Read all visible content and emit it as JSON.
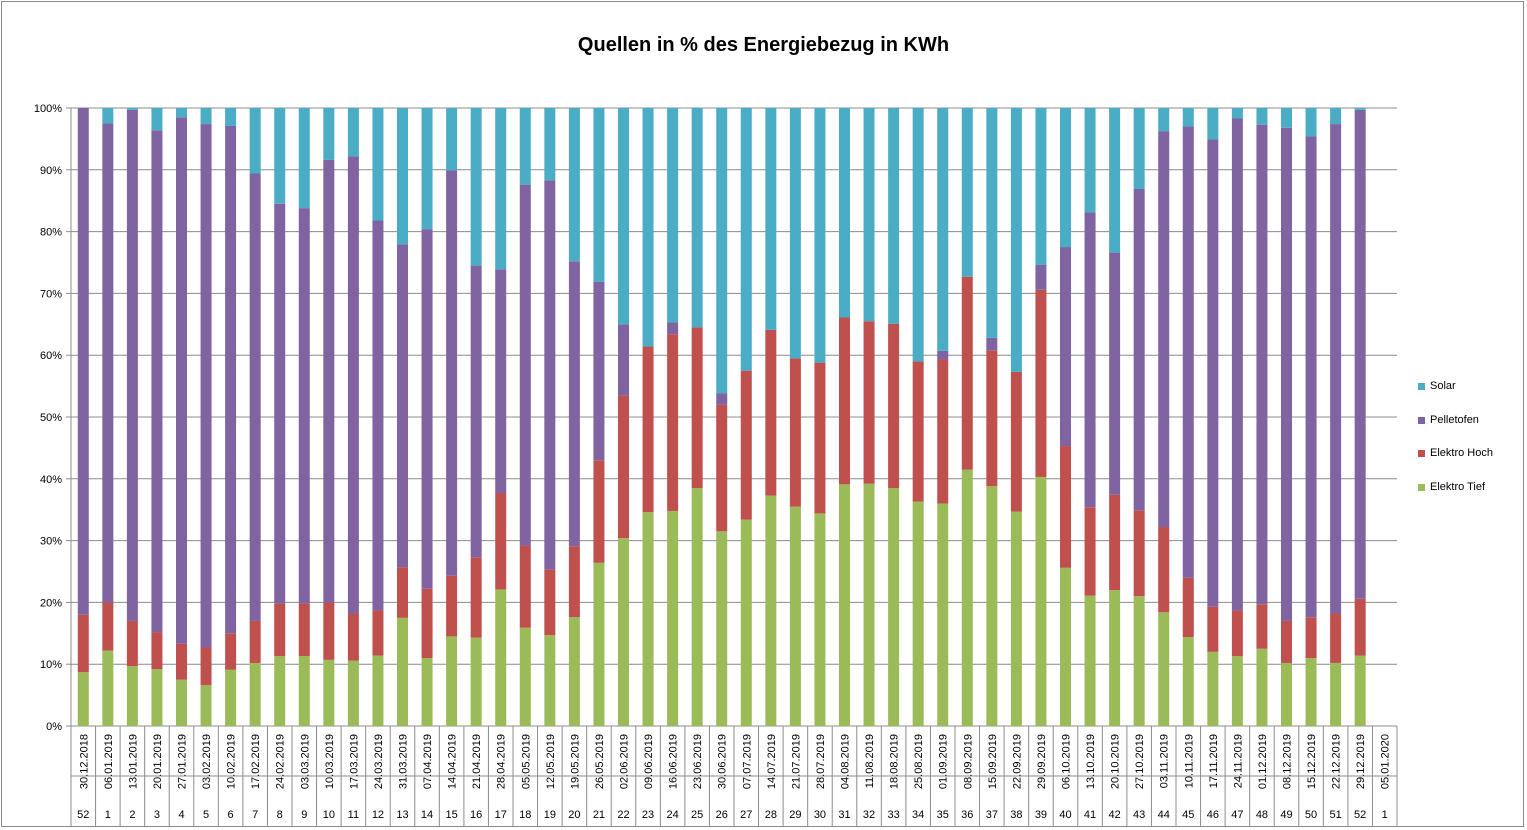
{
  "chart_data": {
    "type": "bar",
    "stacked": "percent",
    "title": "Quellen in % des Energiebezug in KWh",
    "y_ticks": [
      "0%",
      "10%",
      "20%",
      "30%",
      "40%",
      "50%",
      "60%",
      "70%",
      "80%",
      "90%",
      "100%"
    ],
    "ylim": [
      0,
      100
    ],
    "grid": true,
    "legend_position": "right",
    "categories": [
      "30.12.2018",
      "06.01.2019",
      "13.01.2019",
      "20.01.2019",
      "27.01.2019",
      "03.02.2019",
      "10.02.2019",
      "17.02.2019",
      "24.02.2019",
      "03.03.2019",
      "10.03.2019",
      "17.03.2019",
      "24.03.2019",
      "31.03.2019",
      "07.04.2019",
      "14.04.2019",
      "21.04.2019",
      "28.04.2019",
      "05.05.2019",
      "12.05.2019",
      "19.05.2019",
      "26.05.2019",
      "02.06.2019",
      "09.06.2019",
      "16.06.2019",
      "23.06.2019",
      "30.06.2019",
      "07.07.2019",
      "14.07.2019",
      "21.07.2019",
      "28.07.2019",
      "04.08.2019",
      "11.08.2019",
      "18.08.2019",
      "25.08.2019",
      "01.09.2019",
      "08.09.2019",
      "15.09.2019",
      "22.09.2019",
      "29.09.2019",
      "06.10.2019",
      "13.10.2019",
      "20.10.2019",
      "27.10.2019",
      "03.11.2019",
      "10.11.2019",
      "17.11.2019",
      "24.11.2019",
      "01.12.2019",
      "08.12.2019",
      "15.12.2019",
      "22.12.2019",
      "29.12.2019",
      "05.01.2020"
    ],
    "weeks": [
      "52",
      "1",
      "2",
      "3",
      "4",
      "5",
      "6",
      "7",
      "8",
      "9",
      "10",
      "11",
      "12",
      "13",
      "14",
      "15",
      "16",
      "17",
      "18",
      "19",
      "20",
      "21",
      "22",
      "23",
      "24",
      "25",
      "26",
      "27",
      "28",
      "29",
      "30",
      "31",
      "32",
      "33",
      "34",
      "35",
      "36",
      "37",
      "38",
      "39",
      "40",
      "41",
      "42",
      "43",
      "44",
      "45",
      "46",
      "47",
      "48",
      "49",
      "50",
      "51",
      "52",
      "1"
    ],
    "series": [
      {
        "name": "Elektro Tief",
        "color": "#9bbb59",
        "values": [
          8.7,
          12.2,
          9.7,
          9.2,
          7.5,
          6.6,
          9.1,
          10.2,
          11.3,
          11.3,
          10.7,
          10.6,
          11.4,
          17.5,
          11.0,
          14.5,
          14.3,
          22.1,
          15.9,
          14.7,
          17.6,
          26.4,
          30.4,
          34.6,
          34.8,
          38.5,
          31.5,
          33.4,
          37.3,
          35.5,
          34.4,
          39.1,
          39.2,
          38.5,
          36.3,
          36.0,
          41.5,
          38.8,
          34.7,
          40.3,
          25.6,
          21.1,
          22.0,
          21.0,
          18.4,
          14.4,
          12.0,
          11.3,
          12.5,
          10.2,
          11.0,
          10.2,
          11.4,
          0
        ]
      },
      {
        "name": "Elektro Hoch",
        "color": "#c0504d",
        "values": [
          9.3,
          7.8,
          7.3,
          6.0,
          5.8,
          6.1,
          5.9,
          6.8,
          8.5,
          8.5,
          9.3,
          7.6,
          7.3,
          8.2,
          11.2,
          9.8,
          13.0,
          15.6,
          13.3,
          10.6,
          11.5,
          16.6,
          23.1,
          26.8,
          28.6,
          26.0,
          20.5,
          24.1,
          26.8,
          24.0,
          24.4,
          27.0,
          26.3,
          26.6,
          22.7,
          23.3,
          31.2,
          22.0,
          22.6,
          30.3,
          19.7,
          14.3,
          15.4,
          13.9,
          13.8,
          9.6,
          7.3,
          7.4,
          7.2,
          6.8,
          6.6,
          8.0,
          9.2,
          0
        ]
      },
      {
        "name": "Pelletofen",
        "color": "#8064a2",
        "values": [
          82.0,
          77.5,
          82.7,
          81.2,
          85.2,
          84.7,
          82.1,
          72.4,
          64.7,
          64.0,
          71.6,
          74.0,
          63.1,
          52.2,
          58.2,
          65.6,
          47.2,
          36.2,
          58.4,
          63.0,
          46.1,
          28.9,
          11.5,
          0,
          1.9,
          0,
          1.8,
          0,
          0,
          0,
          0,
          0,
          0,
          0,
          0,
          1.4,
          0,
          2.0,
          0,
          4.0,
          32.2,
          47.7,
          39.2,
          52.0,
          64.0,
          73.0,
          75.6,
          79.6,
          77.6,
          79.8,
          77.8,
          79.2,
          79.1,
          0
        ]
      },
      {
        "name": "Solar",
        "color": "#4bacc6",
        "values": [
          0,
          2.5,
          0.3,
          3.6,
          1.5,
          2.6,
          2.9,
          10.6,
          15.5,
          16.2,
          8.4,
          7.8,
          18.2,
          22.1,
          19.6,
          10.1,
          25.5,
          26.1,
          12.4,
          11.7,
          24.8,
          28.1,
          35.0,
          38.6,
          34.7,
          35.5,
          46.2,
          42.5,
          35.9,
          40.5,
          41.2,
          33.9,
          34.5,
          34.9,
          41.0,
          39.3,
          27.3,
          37.2,
          42.7,
          25.4,
          22.5,
          16.9,
          23.4,
          13.1,
          3.8,
          3.0,
          5.1,
          1.7,
          2.7,
          3.2,
          4.6,
          2.6,
          0.3,
          0
        ]
      }
    ]
  },
  "legend": {
    "items": [
      {
        "label": "Solar",
        "color": "#4bacc6"
      },
      {
        "label": "Pelletofen",
        "color": "#8064a2"
      },
      {
        "label": "Elektro Hoch",
        "color": "#c0504d"
      },
      {
        "label": "Elektro Tief",
        "color": "#9bbb59"
      }
    ]
  }
}
